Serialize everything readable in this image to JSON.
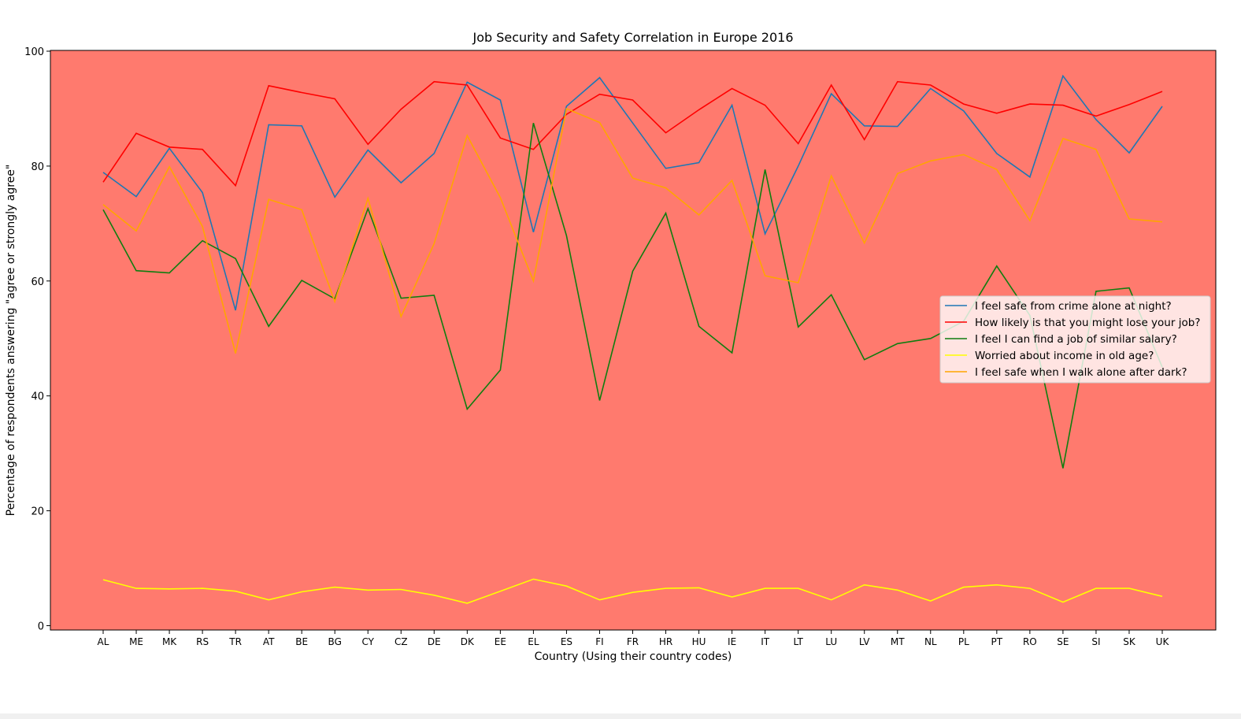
{
  "chart_data": {
    "type": "line",
    "title": "Job Security and Safety Correlation in Europe 2016",
    "xlabel": "Country (Using their country codes)",
    "ylabel": "Percentage of respondents answering \"agree or strongly agree\"",
    "ylim": [
      0,
      100
    ],
    "yticks": [
      0,
      20,
      40,
      60,
      80,
      100
    ],
    "grid": false,
    "legend_position": "center-right",
    "plot_background": "#ff7a6e",
    "categories": [
      "AL",
      "ME",
      "MK",
      "RS",
      "TR",
      "AT",
      "BE",
      "BG",
      "CY",
      "CZ",
      "DE",
      "DK",
      "EE",
      "EL",
      "ES",
      "FI",
      "FR",
      "HR",
      "HU",
      "IE",
      "IT",
      "LT",
      "LU",
      "LV",
      "MT",
      "NL",
      "PL",
      "PT",
      "RO",
      "SE",
      "SI",
      "SK",
      "UK"
    ],
    "series": [
      {
        "name": "I feel safe from crime alone at night?",
        "color": "#1f77b4",
        "values": [
          78.9,
          74.7,
          83.1,
          75.4,
          54.9,
          87.2,
          87.0,
          74.6,
          82.8,
          77.1,
          82.2,
          94.6,
          91.5,
          68.5,
          90.4,
          95.4,
          87.5,
          79.6,
          80.6,
          90.6,
          68.2,
          80.0,
          92.6,
          87.0,
          86.9,
          93.5,
          89.6,
          82.2,
          78.1,
          95.7,
          88.1,
          82.3,
          90.4
        ]
      },
      {
        "name": "How likely is that you might lose your job?",
        "color": "#ff0000",
        "values": [
          77.2,
          85.7,
          83.3,
          82.9,
          76.6,
          94.0,
          92.8,
          91.7,
          83.8,
          89.9,
          94.7,
          94.1,
          84.9,
          82.9,
          89.0,
          92.5,
          91.5,
          85.8,
          89.8,
          93.5,
          90.6,
          83.9,
          94.1,
          84.6,
          94.7,
          94.1,
          90.8,
          89.2,
          90.8,
          90.6,
          88.7,
          90.7,
          93.0
        ]
      },
      {
        "name": "I feel I can find a job of similar salary?",
        "color": "#0f7d0f",
        "values": [
          72.4,
          61.8,
          61.4,
          67.0,
          63.9,
          52.1,
          60.1,
          56.9,
          72.6,
          57.0,
          57.5,
          37.7,
          44.5,
          87.5,
          67.9,
          39.2,
          61.7,
          71.8,
          52.1,
          47.5,
          79.4,
          52.0,
          57.6,
          46.3,
          49.1,
          50.0,
          53.0,
          62.6,
          54.0,
          27.4,
          58.2,
          58.8,
          45.0
        ]
      },
      {
        "name": "Worried about income in old age?",
        "color": "#ffff00",
        "values": [
          8.0,
          6.5,
          6.4,
          6.5,
          6.0,
          4.5,
          5.9,
          6.7,
          6.2,
          6.3,
          5.3,
          3.9,
          6.0,
          8.1,
          6.9,
          4.5,
          5.8,
          6.5,
          6.6,
          5.0,
          6.5,
          6.5,
          4.5,
          7.1,
          6.2,
          4.3,
          6.7,
          7.1,
          6.5,
          4.1,
          6.5,
          6.5,
          5.1
        ]
      },
      {
        "name": "I feel safe when I walk alone after dark?",
        "color": "#ffa500",
        "values": [
          73.3,
          68.7,
          79.9,
          69.5,
          47.4,
          74.2,
          72.4,
          56.4,
          74.4,
          53.8,
          66.5,
          85.3,
          74.5,
          60.0,
          90.0,
          87.6,
          77.9,
          76.2,
          71.5,
          77.5,
          60.9,
          59.7,
          78.3,
          66.6,
          78.7,
          80.9,
          82.0,
          79.4,
          70.5,
          84.8,
          82.9,
          70.8,
          70.3
        ]
      }
    ]
  }
}
